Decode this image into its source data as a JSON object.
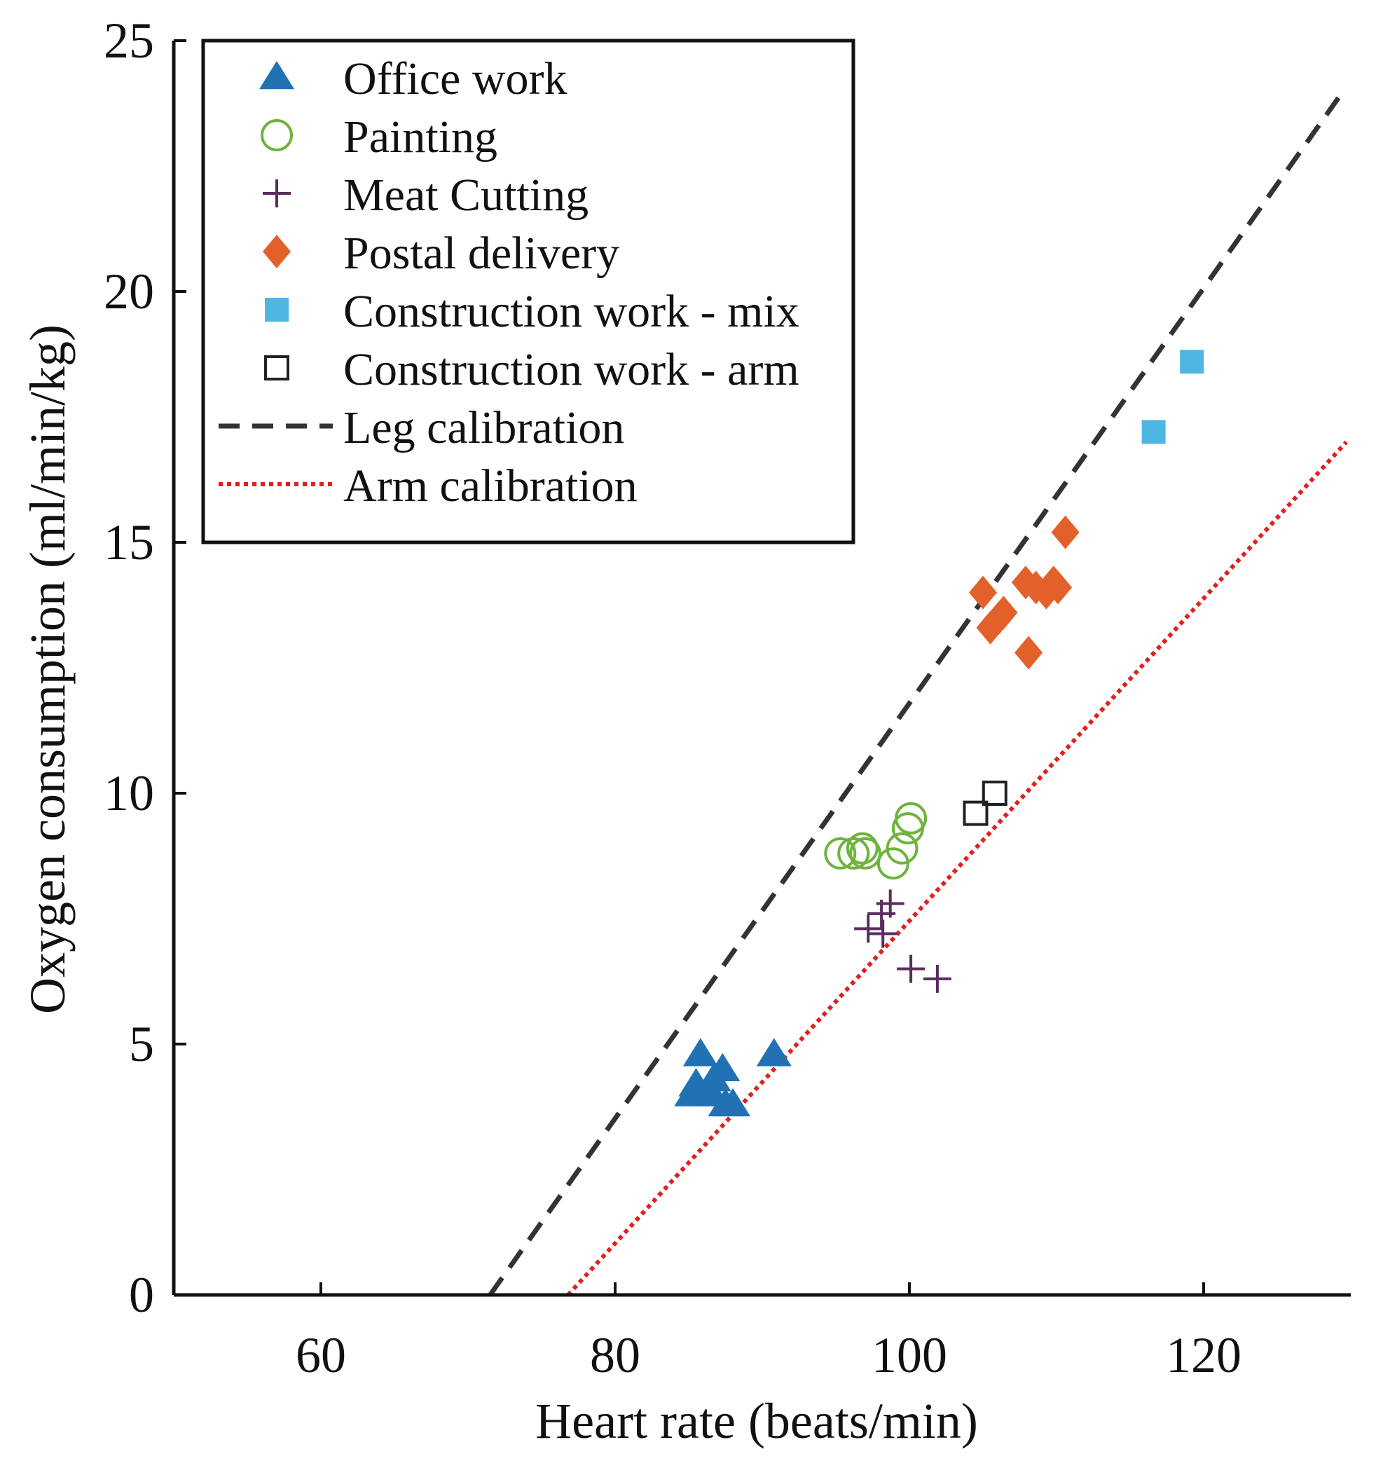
{
  "chart_data": {
    "type": "scatter",
    "xlabel": "Heart rate (beats/min)",
    "ylabel": "Oxygen consumption (ml/min/kg)",
    "xlim": [
      50,
      130
    ],
    "ylim": [
      0,
      25
    ],
    "xticks": [
      60,
      80,
      100,
      120
    ],
    "yticks": [
      0,
      5,
      10,
      15,
      20,
      25
    ],
    "xtick_labels": [
      "60",
      "80",
      "100",
      "120"
    ],
    "ytick_labels": [
      "0",
      "5",
      "10",
      "15",
      "20",
      "25"
    ],
    "grid": false,
    "legend_position": "top-left",
    "series": [
      {
        "name": "Office work",
        "marker": "triangle",
        "color": "#2171b5",
        "points": [
          [
            85.8,
            4.8
          ],
          [
            87.3,
            4.5
          ],
          [
            85.5,
            4.2
          ],
          [
            86.6,
            4.0
          ],
          [
            85.2,
            4.0
          ],
          [
            86.7,
            4.3
          ],
          [
            87.5,
            3.8
          ],
          [
            88.0,
            3.8
          ],
          [
            90.8,
            4.8
          ]
        ]
      },
      {
        "name": "Painting",
        "marker": "circle-open",
        "color": "#6fb33e",
        "points": [
          [
            95.3,
            8.8
          ],
          [
            96.2,
            8.8
          ],
          [
            96.8,
            8.9
          ],
          [
            97.0,
            8.8
          ],
          [
            98.9,
            8.6
          ],
          [
            99.5,
            8.9
          ],
          [
            99.9,
            9.3
          ],
          [
            100.1,
            9.5
          ]
        ]
      },
      {
        "name": "Meat Cutting",
        "marker": "plus",
        "color": "#5a2d5e",
        "points": [
          [
            97.2,
            7.3
          ],
          [
            98.1,
            7.6
          ],
          [
            98.7,
            7.8
          ],
          [
            98.2,
            7.2
          ],
          [
            100.1,
            6.5
          ],
          [
            101.9,
            6.3
          ]
        ]
      },
      {
        "name": "Postal delivery",
        "marker": "diamond",
        "color": "#e4602a",
        "points": [
          [
            105.0,
            14.0
          ],
          [
            105.5,
            13.3
          ],
          [
            106.1,
            13.5
          ],
          [
            106.4,
            13.6
          ],
          [
            107.9,
            14.2
          ],
          [
            108.1,
            12.8
          ],
          [
            108.6,
            14.1
          ],
          [
            109.3,
            14.0
          ],
          [
            109.8,
            14.2
          ],
          [
            110.1,
            14.1
          ],
          [
            110.6,
            15.2
          ]
        ]
      },
      {
        "name": "Construction work - mix",
        "marker": "square",
        "color": "#4db6e3",
        "points": [
          [
            116.6,
            17.2
          ],
          [
            119.2,
            18.6
          ]
        ]
      },
      {
        "name": "Construction work - arm",
        "marker": "square-open",
        "color": "#222222",
        "points": [
          [
            104.5,
            9.6
          ],
          [
            105.8,
            10.0
          ]
        ]
      }
    ],
    "lines": [
      {
        "name": "Leg calibration",
        "style": "dashed",
        "color": "#333333",
        "x": [
          71.5,
          129.5
        ],
        "y": [
          0,
          24.0
        ]
      },
      {
        "name": "Arm calibration",
        "style": "dotted",
        "color": "#e02020",
        "x": [
          76.8,
          129.7
        ],
        "y": [
          0,
          17.0
        ]
      }
    ]
  }
}
